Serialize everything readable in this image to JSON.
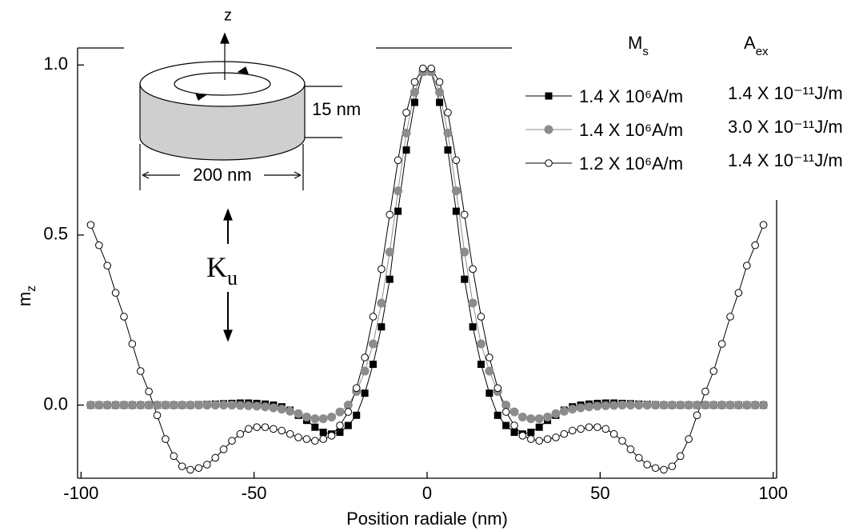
{
  "chart_data": {
    "type": "line",
    "x_label": "Position radiale (nm)",
    "y_label": "m",
    "y_label_sub": "z",
    "legend_header_1": "M",
    "legend_header_1_sub": "s",
    "legend_header_2": "A",
    "legend_header_2_sub": "ex",
    "annotations": {
      "z_axis": "z",
      "thickness": "15 nm",
      "diameter": "200 nm",
      "anisotropy": "K",
      "anisotropy_sub": "u"
    },
    "xlim": [
      -101,
      101
    ],
    "ylim": [
      -0.215,
      1.05
    ],
    "xticks": [
      -100,
      -50,
      0,
      50,
      100
    ],
    "yticks": [
      {
        "value": 0,
        "label": "0.0"
      },
      {
        "value": 0.5,
        "label": "0.5"
      },
      {
        "value": 1,
        "label": "1.0"
      }
    ],
    "x": [
      -97.2,
      -94.8,
      -92.4,
      -90,
      -87.6,
      -85.2,
      -82.8,
      -80.4,
      -78,
      -75.6,
      -73.2,
      -70.8,
      -68.4,
      -66,
      -63.6,
      -61.2,
      -58.8,
      -56.4,
      -54,
      -51.6,
      -49.2,
      -46.8,
      -44.4,
      -42,
      -39.6,
      -37.2,
      -34.8,
      -32.4,
      -30,
      -27.6,
      -25.2,
      -22.8,
      -20.4,
      -18,
      -15.6,
      -13.2,
      -10.8,
      -8.4,
      -6,
      -3.6,
      -1.2,
      1.2,
      3.6,
      6,
      8.4,
      10.8,
      13.2,
      15.6,
      18,
      20.4,
      22.8,
      25.2,
      27.6,
      30,
      32.4,
      34.8,
      37.2,
      39.6,
      42,
      44.4,
      46.8,
      49.2,
      51.6,
      54,
      56.4,
      58.8,
      61.2,
      63.6,
      66,
      68.4,
      70.8,
      73.2,
      75.6,
      78,
      80.4,
      82.8,
      85.2,
      87.6,
      90,
      92.4,
      94.8,
      97.2
    ],
    "series": [
      {
        "name": "1.4 X 10⁶A/m",
        "exchange": "1.4 X 10⁻¹¹J/m",
        "color": "#000000",
        "marker": "square",
        "values": [
          0,
          0,
          0,
          0,
          0,
          0,
          0,
          0,
          0,
          0,
          0,
          0,
          0,
          0.001,
          0.002,
          0.003,
          0.004,
          0.005,
          0.006,
          0.006,
          0.005,
          0.003,
          0,
          -0.005,
          -0.015,
          -0.03,
          -0.045,
          -0.065,
          -0.08,
          -0.085,
          -0.08,
          -0.06,
          -0.03,
          0.035,
          0.12,
          0.23,
          0.37,
          0.57,
          0.75,
          0.89,
          0.98,
          0.98,
          0.89,
          0.75,
          0.57,
          0.37,
          0.23,
          0.12,
          0.035,
          -0.03,
          -0.06,
          -0.08,
          -0.085,
          -0.08,
          -0.065,
          -0.045,
          -0.03,
          -0.015,
          -0.005,
          0,
          0.003,
          0.005,
          0.006,
          0.006,
          0.005,
          0.004,
          0.003,
          0.002,
          0.001,
          0,
          0,
          0,
          0,
          0,
          0,
          0,
          0,
          0,
          0,
          0,
          0,
          0
        ]
      },
      {
        "name": "1.4 X 10⁶A/m",
        "exchange": "3.0 X 10⁻¹¹J/m",
        "color": "#8c8c8c",
        "marker": "circle",
        "values": [
          0,
          0,
          0,
          0,
          0,
          0,
          0,
          0,
          0,
          0,
          0,
          0,
          0,
          0,
          0,
          0,
          0,
          0,
          -0.001,
          -0.002,
          -0.003,
          -0.005,
          -0.008,
          -0.012,
          -0.018,
          -0.025,
          -0.035,
          -0.04,
          -0.04,
          -0.035,
          -0.02,
          0,
          0.04,
          0.1,
          0.18,
          0.3,
          0.45,
          0.63,
          0.8,
          0.92,
          0.98,
          0.98,
          0.92,
          0.8,
          0.63,
          0.45,
          0.3,
          0.18,
          0.1,
          0.04,
          0,
          -0.02,
          -0.035,
          -0.04,
          -0.04,
          -0.035,
          -0.025,
          -0.018,
          -0.012,
          -0.008,
          -0.005,
          -0.003,
          -0.002,
          -0.001,
          0,
          0,
          0,
          0,
          0,
          0,
          0,
          0,
          0,
          0,
          0,
          0,
          0,
          0,
          0,
          0,
          0,
          0
        ]
      },
      {
        "name": "1.2 X 10⁶A/m",
        "exchange": "1.4 X 10⁻¹¹J/m",
        "color": "#000000",
        "marker": "open-circle",
        "values": [
          0.53,
          0.47,
          0.41,
          0.33,
          0.26,
          0.18,
          0.1,
          0.04,
          -0.03,
          -0.1,
          -0.15,
          -0.18,
          -0.19,
          -0.185,
          -0.175,
          -0.155,
          -0.13,
          -0.105,
          -0.085,
          -0.07,
          -0.065,
          -0.065,
          -0.07,
          -0.075,
          -0.085,
          -0.095,
          -0.1,
          -0.105,
          -0.1,
          -0.09,
          -0.06,
          -0.02,
          0.05,
          0.14,
          0.26,
          0.4,
          0.56,
          0.72,
          0.86,
          0.95,
          0.99,
          0.99,
          0.95,
          0.86,
          0.72,
          0.56,
          0.4,
          0.26,
          0.14,
          0.05,
          -0.02,
          -0.06,
          -0.09,
          -0.1,
          -0.105,
          -0.1,
          -0.095,
          -0.085,
          -0.075,
          -0.07,
          -0.065,
          -0.065,
          -0.07,
          -0.085,
          -0.105,
          -0.13,
          -0.155,
          -0.175,
          -0.185,
          -0.19,
          -0.18,
          -0.15,
          -0.1,
          -0.03,
          0.04,
          0.1,
          0.18,
          0.26,
          0.33,
          0.41,
          0.47,
          0.53
        ]
      }
    ]
  }
}
